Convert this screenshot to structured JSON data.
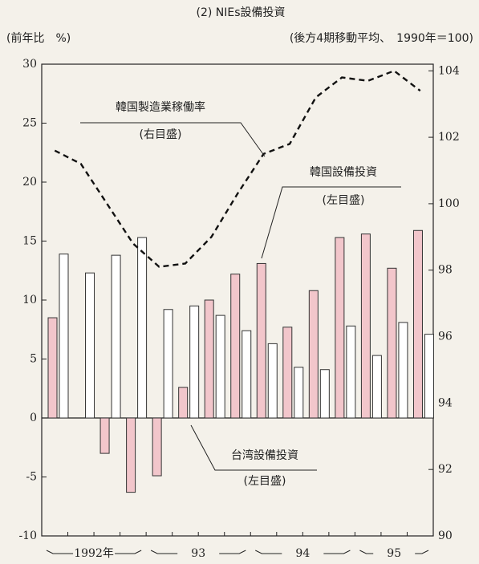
{
  "chart_data": {
    "type": "bar",
    "title": "(2) NIEs設備投資",
    "y_label": "(前年比　%)",
    "y2_label": "(後方4期移動平均、　1990年＝100)",
    "categories": [
      null,
      null,
      null,
      null,
      null,
      null,
      null,
      null,
      null,
      null,
      null,
      null,
      null,
      null,
      null
    ],
    "year_labels": [
      "1992年",
      "93",
      "94",
      "95"
    ],
    "series": [
      {
        "name": "韓国設備投資",
        "note": "(左目盛)",
        "color": "#f2c6cb",
        "values": [
          8.5,
          0,
          -3.0,
          -6.3,
          -4.9,
          2.6,
          10.0,
          12.2,
          13.1,
          7.7,
          10.8,
          15.3,
          15.6,
          12.7,
          15.9
        ]
      },
      {
        "name": "台湾設備投資",
        "note": "(左目盛)",
        "color": "#ffffff",
        "values": [
          13.9,
          12.3,
          13.8,
          15.3,
          9.2,
          9.5,
          8.7,
          7.4,
          6.3,
          4.3,
          4.1,
          7.8,
          5.3,
          8.1,
          7.1
        ]
      },
      {
        "name": "韓国製造業稼働率",
        "note": "(右目盛)",
        "color": "#111111",
        "axis": "y2",
        "values": [
          101.6,
          101.2,
          100.0,
          98.8,
          98.1,
          98.2,
          99.0,
          100.3,
          101.5,
          101.8,
          103.2,
          103.8,
          103.7,
          104.0,
          103.4
        ]
      }
    ],
    "ylim": [
      -10,
      30
    ],
    "yticks": [
      -10,
      -5,
      0,
      5,
      10,
      15,
      20,
      25,
      30
    ],
    "y2lim": [
      90,
      104.2
    ],
    "y2ticks": [
      90,
      92,
      94,
      96,
      98,
      100,
      102,
      104
    ]
  }
}
